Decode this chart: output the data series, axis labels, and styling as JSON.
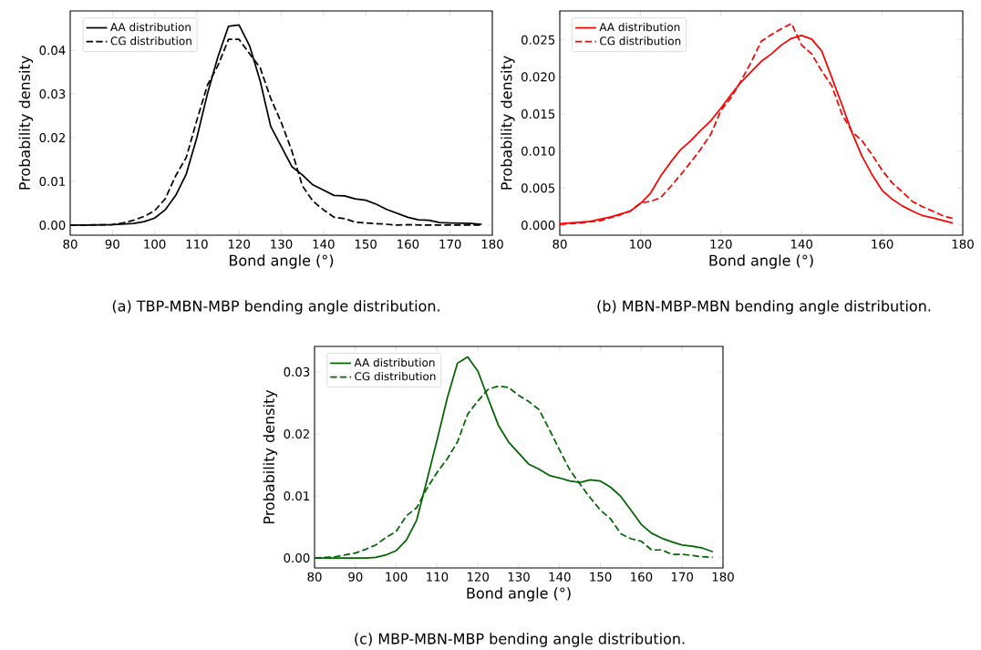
{
  "chart_data": [
    {
      "type": "line",
      "xlabel": "Bond angle (°)",
      "ylabel": "Probability density",
      "xlim": [
        80,
        180
      ],
      "ylim": [
        -0.0023,
        0.049
      ],
      "xticks": [
        80,
        90,
        100,
        110,
        120,
        130,
        140,
        150,
        160,
        170,
        180
      ],
      "yticks": [
        {
          "value": 0,
          "label": "0.00"
        },
        {
          "value": 0.01,
          "label": "0.01"
        },
        {
          "value": 0.02,
          "label": "0.02"
        },
        {
          "value": 0.03,
          "label": "0.03"
        },
        {
          "value": 0.04,
          "label": "0.04"
        }
      ],
      "legend": "top left",
      "grid": false,
      "marker": "none",
      "annotations": [
        "(a) TBP-MBN-MBP bending angle distribution."
      ],
      "series": [
        {
          "name": "AA distribution",
          "color": "#000000",
          "line_style": "solid",
          "x": [
            80,
            85,
            90,
            95,
            97.5,
            100,
            102.5,
            105,
            107.5,
            110,
            112.5,
            115,
            117.5,
            120,
            122.5,
            125,
            127.5,
            130,
            132.5,
            135,
            137.5,
            140,
            142.5,
            145,
            147.5,
            150,
            152.5,
            155,
            157.5,
            160,
            162.5,
            165,
            167.5,
            170,
            175,
            177.5
          ],
          "values": [
            0,
            0,
            0.0001,
            0.0004,
            0.0008,
            0.0016,
            0.0035,
            0.0068,
            0.0117,
            0.02,
            0.03,
            0.0385,
            0.0455,
            0.0458,
            0.041,
            0.033,
            0.0226,
            0.018,
            0.0134,
            0.0115,
            0.0092,
            0.008,
            0.0068,
            0.0067,
            0.006,
            0.0057,
            0.0048,
            0.0036,
            0.0027,
            0.0018,
            0.0012,
            0.0011,
            0.0006,
            0.0005,
            0.0004,
            0.0002
          ]
        },
        {
          "name": "CG distribution",
          "color": "#000000",
          "line_style": "dashed",
          "x": [
            80,
            90,
            92.5,
            95,
            97.5,
            100,
            102.5,
            105,
            107.5,
            110,
            112.5,
            115,
            117.5,
            120,
            122.5,
            125,
            127.5,
            130,
            132.5,
            135,
            137.5,
            140,
            142.5,
            145,
            147.5,
            150,
            155,
            157.5,
            160,
            165,
            177.5
          ],
          "values": [
            0,
            0.0001,
            0.0005,
            0.0011,
            0.002,
            0.0033,
            0.006,
            0.0113,
            0.0155,
            0.024,
            0.032,
            0.0365,
            0.0425,
            0.0425,
            0.0392,
            0.036,
            0.029,
            0.0235,
            0.017,
            0.009,
            0.0055,
            0.0035,
            0.0018,
            0.0015,
            0.0007,
            0.0005,
            0.0002,
            0,
            0.0001,
            0,
            0
          ]
        }
      ]
    },
    {
      "type": "line",
      "xlabel": "Bond angle (°)",
      "ylabel": "Probability density",
      "xlim": [
        80,
        180
      ],
      "ylim": [
        -0.00135,
        0.0289
      ],
      "xticks": [
        80,
        100,
        120,
        140,
        160,
        180
      ],
      "yticks": [
        {
          "value": 0,
          "label": "0.000"
        },
        {
          "value": 0.005,
          "label": "0.005"
        },
        {
          "value": 0.01,
          "label": "0.010"
        },
        {
          "value": 0.015,
          "label": "0.015"
        },
        {
          "value": 0.02,
          "label": "0.020"
        },
        {
          "value": 0.025,
          "label": "0.025"
        }
      ],
      "legend": "top left",
      "grid": false,
      "marker": "none",
      "annotations": [
        "(b) MBN-MBP-MBN bending angle distribution."
      ],
      "series": [
        {
          "name": "AA distribution",
          "color": "#ff0000",
          "line_style": "solid",
          "x": [
            80,
            87.5,
            92.5,
            97.5,
            100,
            102.5,
            105,
            107.5,
            110,
            112.5,
            115,
            117.5,
            120,
            122.5,
            125,
            127.5,
            130,
            132.5,
            135,
            137.5,
            140,
            142.5,
            145,
            147.5,
            150,
            152.5,
            155,
            157.5,
            160,
            162.5,
            165,
            167.5,
            170,
            172.5,
            177.5
          ],
          "values": [
            0.0002,
            0.0005,
            0.0011,
            0.0019,
            0.0029,
            0.0043,
            0.0066,
            0.0085,
            0.0102,
            0.0114,
            0.0128,
            0.0141,
            0.0158,
            0.0176,
            0.0193,
            0.0207,
            0.0221,
            0.0231,
            0.0243,
            0.0252,
            0.0256,
            0.0251,
            0.0235,
            0.0199,
            0.0163,
            0.0125,
            0.0093,
            0.0068,
            0.0047,
            0.0035,
            0.0026,
            0.0019,
            0.0013,
            0.001,
            0.0003
          ]
        },
        {
          "name": "CG distribution",
          "color": "#ff0000",
          "line_style": "dashed",
          "x": [
            80,
            85,
            90,
            95,
            97.5,
            100,
            102.5,
            105,
            107.5,
            110,
            112.5,
            115,
            117.5,
            120,
            122.5,
            125,
            127.5,
            130,
            132.5,
            135,
            137.5,
            140,
            142.5,
            145,
            147.5,
            150,
            152.5,
            155,
            157.5,
            160,
            162.5,
            165,
            167.5,
            170,
            172.5,
            175,
            177.5
          ],
          "values": [
            0.0001,
            0.0003,
            0.0006,
            0.0014,
            0.0019,
            0.003,
            0.0032,
            0.0037,
            0.0052,
            0.0068,
            0.0085,
            0.0103,
            0.0123,
            0.0155,
            0.0172,
            0.0195,
            0.022,
            0.0248,
            0.0257,
            0.0265,
            0.0272,
            0.0243,
            0.0231,
            0.0208,
            0.0188,
            0.015,
            0.0126,
            0.0114,
            0.0095,
            0.0074,
            0.0057,
            0.0045,
            0.0032,
            0.0025,
            0.0019,
            0.0013,
            0.0009
          ]
        }
      ]
    },
    {
      "type": "line",
      "xlabel": "Bond angle (°)",
      "ylabel": "Probability density",
      "xlim": [
        80,
        180
      ],
      "ylim": [
        -0.0016,
        0.0341
      ],
      "xticks": [
        80,
        90,
        100,
        110,
        120,
        130,
        140,
        150,
        160,
        170,
        180
      ],
      "yticks": [
        {
          "value": 0,
          "label": "0.00"
        },
        {
          "value": 0.01,
          "label": "0.01"
        },
        {
          "value": 0.02,
          "label": "0.02"
        },
        {
          "value": 0.03,
          "label": "0.03"
        }
      ],
      "legend": "top left",
      "grid": false,
      "marker": "none",
      "annotations": [
        "(c) MBP-MBN-MBP bending angle distribution."
      ],
      "series": [
        {
          "name": "AA distribution",
          "color": "#006400",
          "line_style": "solid",
          "x": [
            80,
            92.5,
            95,
            97.5,
            100,
            102.5,
            105,
            107.5,
            110,
            112.5,
            115,
            117.5,
            120,
            122.5,
            125,
            127.5,
            130,
            132.5,
            135,
            137.5,
            140,
            142.5,
            145,
            147.5,
            150,
            152.5,
            155,
            157.5,
            160,
            162.5,
            165,
            167.5,
            170,
            172.5,
            175,
            177.5
          ],
          "values": [
            0,
            0,
            0.0001,
            0.0005,
            0.0012,
            0.0029,
            0.0061,
            0.0125,
            0.019,
            0.0258,
            0.0314,
            0.0324,
            0.0301,
            0.0257,
            0.0214,
            0.0187,
            0.0169,
            0.0151,
            0.0143,
            0.0133,
            0.0129,
            0.0124,
            0.0122,
            0.0126,
            0.0124,
            0.0114,
            0.0099,
            0.0077,
            0.0054,
            0.004,
            0.0032,
            0.0026,
            0.0021,
            0.0019,
            0.0016,
            0.001
          ]
        },
        {
          "name": "CG distribution",
          "color": "#006400",
          "line_style": "dashed",
          "x": [
            80,
            85,
            87.5,
            90,
            92.5,
            95,
            97.5,
            100,
            102.5,
            105,
            107.5,
            110,
            112.5,
            115,
            117.5,
            120,
            122.5,
            125,
            127.5,
            130,
            132.5,
            135,
            137.5,
            140,
            142.5,
            145,
            147.5,
            150,
            152.5,
            155,
            157.5,
            160,
            162.5,
            165,
            167.5,
            170,
            175,
            177.5
          ],
          "values": [
            0,
            0.0002,
            0.0005,
            0.0008,
            0.0014,
            0.0021,
            0.0033,
            0.0043,
            0.0068,
            0.0081,
            0.0112,
            0.0138,
            0.016,
            0.0187,
            0.0232,
            0.0253,
            0.0272,
            0.0277,
            0.0275,
            0.0262,
            0.0252,
            0.0239,
            0.0207,
            0.0174,
            0.0142,
            0.0119,
            0.0097,
            0.0077,
            0.0063,
            0.0039,
            0.0031,
            0.0027,
            0.0013,
            0.0013,
            0.0006,
            0.0006,
            0.0002,
            0.0001
          ]
        }
      ]
    }
  ]
}
